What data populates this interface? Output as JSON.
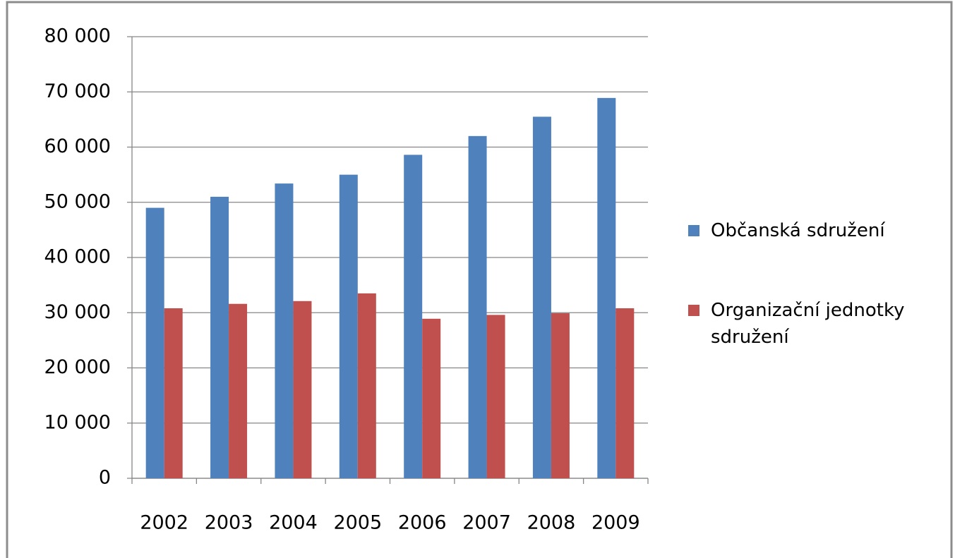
{
  "chart_data": {
    "type": "bar",
    "categories": [
      "2002",
      "2003",
      "2004",
      "2005",
      "2006",
      "2007",
      "2008",
      "2009"
    ],
    "series": [
      {
        "name": "Občanská sdružení",
        "color": "#4f81bd",
        "values": [
          49000,
          51000,
          53400,
          55000,
          58600,
          62000,
          65500,
          68900
        ]
      },
      {
        "name": "Organizační jednotky sdružení",
        "color": "#c0504d",
        "values": [
          30800,
          31600,
          32100,
          33500,
          28900,
          29600,
          29900,
          30800
        ]
      }
    ],
    "ylim": [
      0,
      80000
    ],
    "yticks": [
      0,
      {
        "value": 10000,
        "label": "10 000"
      },
      {
        "value": 20000,
        "label": "20 000"
      },
      {
        "value": 30000,
        "label": "30 000"
      },
      {
        "value": 40000,
        "label": "40 000"
      },
      {
        "value": 50000,
        "label": "50 000"
      },
      {
        "value": 60000,
        "label": "60 000"
      },
      {
        "value": 70000,
        "label": "70 000"
      },
      {
        "value": 80000,
        "label": "80 000"
      }
    ],
    "grid": true,
    "legend": "right"
  }
}
